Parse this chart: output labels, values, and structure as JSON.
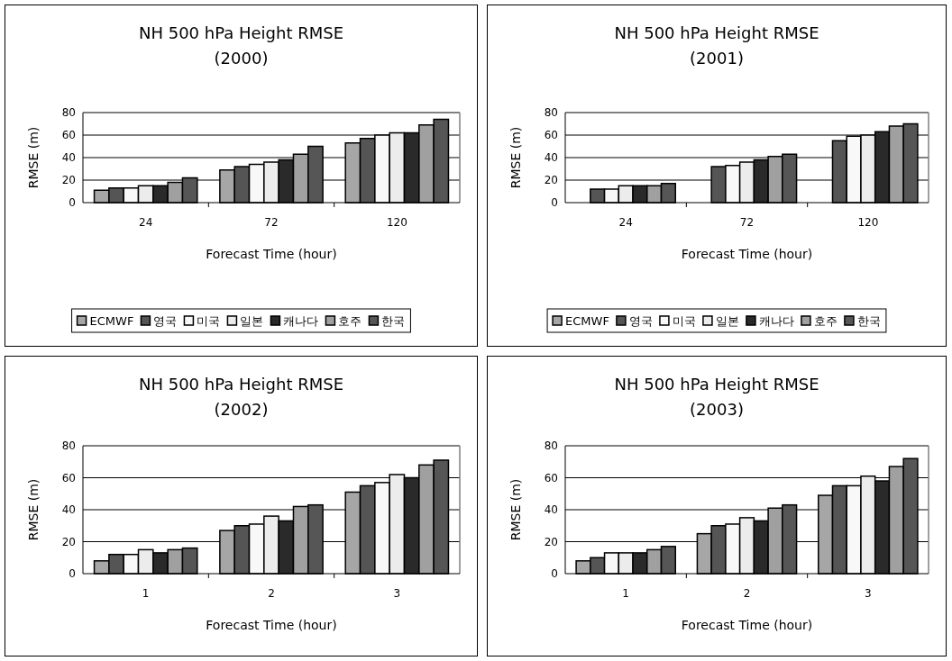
{
  "chart_data": [
    {
      "type": "bar",
      "title": "NH 500 hPa Height RMSE",
      "subtitle": "(2000)",
      "xlabel": "Forecast Time (hour)",
      "ylabel": "RMSE (m)",
      "categories": [
        "24",
        "72",
        "120"
      ],
      "ylim": [
        0,
        80
      ],
      "yticks": [
        0,
        20,
        40,
        60,
        80
      ],
      "grid": "y",
      "legend": "bottom",
      "series": [
        {
          "name": "ECMWF",
          "color": "#a6a6a6",
          "values": [
            11,
            29,
            53
          ]
        },
        {
          "name": "영국",
          "color": "#555555",
          "values": [
            13,
            32,
            57
          ]
        },
        {
          "name": "미국",
          "color": "#f8f8f8",
          "values": [
            13,
            34,
            60
          ]
        },
        {
          "name": "일본",
          "color": "#ececec",
          "values": [
            15,
            36,
            62
          ]
        },
        {
          "name": "캐나다",
          "color": "#2a2a2a",
          "values": [
            15,
            38,
            62
          ]
        },
        {
          "name": "호주",
          "color": "#a0a0a0",
          "values": [
            18,
            43,
            69
          ]
        },
        {
          "name": "한국",
          "color": "#565656",
          "values": [
            22,
            50,
            74
          ]
        }
      ]
    },
    {
      "type": "bar",
      "title": "NH 500 hPa Height RMSE",
      "subtitle": "(2001)",
      "xlabel": "Forecast Time (hour)",
      "ylabel": "RMSE (m)",
      "categories": [
        "24",
        "72",
        "120"
      ],
      "ylim": [
        0,
        80
      ],
      "yticks": [
        0,
        20,
        40,
        60,
        80
      ],
      "grid": "y",
      "legend": "bottom",
      "series": [
        {
          "name": "ECMWF",
          "color": "#a6a6a6",
          "values": [
            null,
            null,
            null
          ]
        },
        {
          "name": "영국",
          "color": "#555555",
          "values": [
            12,
            32,
            55
          ]
        },
        {
          "name": "미국",
          "color": "#f8f8f8",
          "values": [
            12,
            33,
            59
          ]
        },
        {
          "name": "일본",
          "color": "#ececec",
          "values": [
            15,
            36,
            60
          ]
        },
        {
          "name": "캐나다",
          "color": "#2a2a2a",
          "values": [
            15,
            38,
            63
          ]
        },
        {
          "name": "호주",
          "color": "#a0a0a0",
          "values": [
            15,
            41,
            68
          ]
        },
        {
          "name": "한국",
          "color": "#565656",
          "values": [
            17,
            43,
            70
          ]
        }
      ]
    },
    {
      "type": "bar",
      "title": "NH 500 hPa Height RMSE",
      "subtitle": "(2002)",
      "xlabel": "Forecast Time (hour)",
      "ylabel": "RMSE (m)",
      "categories": [
        "1",
        "2",
        "3"
      ],
      "ylim": [
        0,
        80
      ],
      "yticks": [
        0,
        20,
        40,
        60,
        80
      ],
      "grid": "y",
      "series": [
        {
          "color": "#a6a6a6",
          "values": [
            8,
            27,
            51
          ]
        },
        {
          "color": "#555555",
          "values": [
            12,
            30,
            55
          ]
        },
        {
          "color": "#f8f8f8",
          "values": [
            12,
            31,
            57
          ]
        },
        {
          "color": "#ececec",
          "values": [
            15,
            36,
            62
          ]
        },
        {
          "color": "#2a2a2a",
          "values": [
            13,
            33,
            60
          ]
        },
        {
          "color": "#a0a0a0",
          "values": [
            15,
            42,
            68
          ]
        },
        {
          "color": "#565656",
          "values": [
            16,
            43,
            71
          ]
        }
      ]
    },
    {
      "type": "bar",
      "title": "NH 500 hPa Height RMSE",
      "subtitle": "(2003)",
      "xlabel": "Forecast Time (hour)",
      "ylabel": "RMSE (m)",
      "categories": [
        "1",
        "2",
        "3"
      ],
      "ylim": [
        0,
        80
      ],
      "yticks": [
        0,
        20,
        40,
        60,
        80
      ],
      "grid": "y",
      "series": [
        {
          "color": "#a6a6a6",
          "values": [
            8,
            25,
            49
          ]
        },
        {
          "color": "#555555",
          "values": [
            10,
            30,
            55
          ]
        },
        {
          "color": "#f8f8f8",
          "values": [
            13,
            31,
            55
          ]
        },
        {
          "color": "#ececec",
          "values": [
            13,
            35,
            61
          ]
        },
        {
          "color": "#2a2a2a",
          "values": [
            13,
            33,
            58
          ]
        },
        {
          "color": "#a0a0a0",
          "values": [
            15,
            41,
            67
          ]
        },
        {
          "color": "#565656",
          "values": [
            17,
            43,
            72
          ]
        }
      ]
    }
  ]
}
